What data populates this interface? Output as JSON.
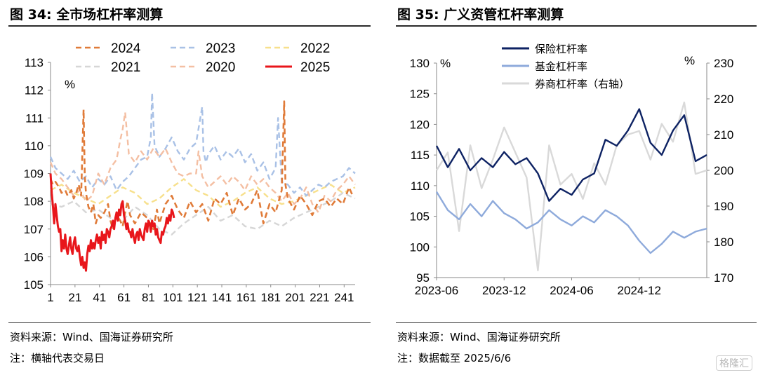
{
  "left": {
    "title": "图 34:  全市场杠杆率测算",
    "source": "资料来源：Wind、国海证券研究所",
    "note": "注：横轴代表交易日",
    "chart_data": {
      "type": "line",
      "ylabel": "%",
      "ylim": [
        105,
        113
      ],
      "yticks": [
        105,
        106,
        107,
        108,
        109,
        110,
        111,
        112,
        113
      ],
      "xlim": [
        1,
        250
      ],
      "xticks": [
        1,
        21,
        41,
        61,
        81,
        101,
        121,
        141,
        161,
        181,
        201,
        221,
        241
      ],
      "legend_position": "top",
      "series": [
        {
          "name": "2024",
          "color": "#E07B39",
          "dash": "8,5",
          "width": 2.6,
          "x": [
            1,
            3,
            5,
            8,
            10,
            13,
            15,
            18,
            20,
            22,
            24,
            26,
            28,
            29,
            30,
            32,
            34,
            36,
            38,
            40,
            42,
            45,
            48,
            50,
            52,
            55,
            58,
            60,
            62,
            64,
            66,
            70,
            75,
            80,
            85,
            88,
            90,
            95,
            100,
            105,
            110,
            115,
            120,
            125,
            130,
            135,
            140,
            145,
            150,
            155,
            160,
            165,
            170,
            175,
            180,
            185,
            190,
            192,
            193,
            195,
            200,
            205,
            210,
            215,
            220,
            225,
            230,
            235,
            240,
            245,
            248
          ],
          "y": [
            108.8,
            108.6,
            108.7,
            108.5,
            108.3,
            108.4,
            108.2,
            108.4,
            108.1,
            108.3,
            108.6,
            108.2,
            111.3,
            108.9,
            108.3,
            107.8,
            107.6,
            107.9,
            107.2,
            107.5,
            107.4,
            107.6,
            107.9,
            107.3,
            107.0,
            107.5,
            107.3,
            107.1,
            107.6,
            108.0,
            107.5,
            107.2,
            107.6,
            107.4,
            107.0,
            107.7,
            107.2,
            107.9,
            108.2,
            107.7,
            107.4,
            108.0,
            107.6,
            107.9,
            107.3,
            108.1,
            107.9,
            108.3,
            107.5,
            108.1,
            107.7,
            107.9,
            108.4,
            107.2,
            107.9,
            107.6,
            108.4,
            111.6,
            108.6,
            108.1,
            107.7,
            108.2,
            107.9,
            107.5,
            108.0,
            108.1,
            107.8,
            108.1,
            107.9,
            108.5,
            108.2
          ]
        },
        {
          "name": "2023",
          "color": "#A9C1E6",
          "dash": "8,5",
          "width": 2.4,
          "x": [
            1,
            5,
            10,
            15,
            20,
            25,
            30,
            35,
            40,
            45,
            50,
            55,
            60,
            65,
            70,
            75,
            80,
            83,
            84,
            86,
            90,
            95,
            100,
            105,
            110,
            115,
            120,
            125,
            126,
            128,
            130,
            135,
            140,
            145,
            150,
            155,
            160,
            165,
            170,
            175,
            180,
            185,
            187,
            190,
            195,
            200,
            205,
            210,
            215,
            220,
            225,
            230,
            235,
            240,
            245,
            250
          ],
          "y": [
            109.6,
            109.2,
            109.0,
            108.8,
            109.1,
            108.7,
            108.9,
            108.5,
            108.8,
            108.6,
            108.9,
            108.4,
            108.7,
            108.9,
            109.2,
            109.5,
            109.6,
            110.3,
            111.9,
            110.0,
            109.6,
            109.9,
            110.3,
            109.8,
            109.5,
            109.9,
            110.1,
            111.4,
            109.8,
            109.4,
            109.7,
            110.0,
            109.5,
            109.8,
            109.6,
            109.9,
            109.4,
            109.7,
            109.1,
            109.4,
            108.8,
            109.2,
            111.0,
            108.7,
            108.6,
            108.3,
            108.5,
            108.2,
            108.4,
            108.6,
            108.5,
            108.7,
            108.8,
            108.9,
            109.2,
            109.0
          ]
        },
        {
          "name": "2022",
          "color": "#F7E08C",
          "dash": "8,5",
          "width": 2.4,
          "x": [
            1,
            10,
            20,
            30,
            40,
            50,
            60,
            70,
            80,
            90,
            100,
            110,
            120,
            130,
            140,
            150,
            160,
            170,
            180,
            190,
            200,
            210,
            220,
            230,
            240,
            250
          ],
          "y": [
            108.4,
            108.6,
            108.3,
            108.1,
            107.9,
            108.2,
            108.5,
            108.3,
            107.9,
            108.1,
            108.5,
            108.8,
            108.4,
            108.2,
            107.8,
            108.0,
            108.3,
            108.5,
            108.1,
            107.9,
            108.0,
            108.2,
            108.4,
            108.6,
            108.3,
            108.5
          ]
        },
        {
          "name": "2021",
          "color": "#D6D6D6",
          "dash": "8,5",
          "width": 2.4,
          "x": [
            1,
            10,
            20,
            30,
            40,
            50,
            60,
            70,
            80,
            90,
            100,
            110,
            120,
            130,
            140,
            150,
            160,
            170,
            180,
            190,
            200,
            210,
            220,
            230,
            240,
            250
          ],
          "y": [
            107.9,
            107.8,
            108.0,
            107.6,
            107.7,
            107.4,
            107.3,
            107.8,
            107.5,
            107.0,
            106.8,
            107.2,
            107.5,
            107.8,
            107.3,
            107.5,
            107.1,
            107.0,
            107.3,
            107.1,
            107.4,
            107.6,
            107.8,
            108.0,
            108.3,
            108.1
          ]
        },
        {
          "name": "2020",
          "color": "#F4BFA3",
          "dash": "8,5",
          "width": 2.4,
          "x": [
            1,
            5,
            10,
            15,
            20,
            25,
            30,
            35,
            40,
            45,
            50,
            55,
            58,
            60,
            62,
            65,
            70,
            75,
            80,
            85,
            90,
            95,
            100,
            105,
            110,
            115,
            120,
            122,
            125,
            130,
            135,
            140,
            145,
            150,
            155,
            160,
            165,
            170,
            175,
            180,
            185,
            190,
            195,
            200,
            205,
            210,
            215,
            220,
            225,
            230,
            235,
            240,
            245,
            250
          ],
          "y": [
            109.4,
            109.0,
            108.8,
            108.5,
            108.2,
            108.4,
            108.0,
            108.2,
            109.0,
            108.6,
            109.2,
            109.5,
            110.2,
            110.6,
            111.2,
            109.7,
            109.4,
            109.8,
            109.5,
            109.9,
            109.6,
            109.9,
            109.4,
            109.0,
            108.9,
            109.0,
            109.0,
            109.8,
            108.9,
            108.5,
            108.7,
            108.9,
            108.6,
            108.9,
            108.7,
            108.4,
            108.9,
            108.6,
            108.8,
            108.5,
            108.3,
            108.0,
            108.3,
            107.9,
            108.1,
            108.5,
            107.9,
            107.6,
            108.2,
            108.0,
            108.4,
            108.6,
            108.9,
            108.6
          ]
        },
        {
          "name": "2025",
          "color": "#E8161B",
          "dash": "",
          "width": 3.0,
          "x": [
            1,
            2,
            3,
            4,
            5,
            6,
            7,
            8,
            9,
            10,
            11,
            12,
            13,
            14,
            15,
            16,
            17,
            18,
            19,
            20,
            21,
            22,
            23,
            24,
            25,
            26,
            27,
            28,
            29,
            30,
            31,
            32,
            33,
            34,
            35,
            36,
            37,
            38,
            39,
            40,
            41,
            42,
            43,
            44,
            45,
            46,
            47,
            48,
            49,
            50,
            51,
            52,
            53,
            54,
            55,
            56,
            57,
            58,
            59,
            60,
            61,
            62,
            63,
            64,
            65,
            66,
            67,
            68,
            69,
            70,
            71,
            72,
            73,
            74,
            75,
            76,
            77,
            78,
            79,
            80,
            81,
            82,
            83,
            84,
            85,
            86,
            87,
            88,
            89,
            90,
            91,
            92,
            93,
            94,
            95,
            96,
            97,
            98,
            99,
            100,
            101,
            102
          ],
          "y": [
            109.0,
            108.3,
            107.8,
            107.2,
            107.9,
            107.5,
            107.1,
            106.9,
            107.0,
            106.2,
            106.6,
            106.3,
            106.8,
            106.3,
            106.1,
            106.4,
            106.7,
            106.3,
            106.1,
            106.5,
            106.7,
            106.3,
            106.2,
            106.4,
            106.0,
            105.7,
            106.0,
            105.6,
            105.8,
            105.5,
            106.1,
            106.4,
            106.2,
            106.6,
            106.3,
            106.5,
            106.3,
            106.6,
            106.8,
            106.5,
            106.7,
            106.3,
            106.9,
            106.6,
            106.8,
            106.5,
            107.0,
            106.9,
            106.7,
            107.0,
            107.1,
            107.3,
            107.0,
            107.4,
            107.6,
            107.3,
            107.7,
            107.5,
            107.9,
            108.0,
            107.5,
            107.3,
            107.0,
            107.2,
            106.9,
            106.9,
            106.7,
            107.0,
            106.7,
            106.5,
            106.8,
            106.9,
            106.6,
            107.0,
            106.8,
            106.7,
            106.6,
            107.0,
            107.2,
            106.9,
            107.3,
            107.2,
            106.9,
            107.3,
            107.1,
            107.2,
            106.8,
            107.0,
            106.7,
            106.6,
            106.5,
            106.9,
            106.8,
            107.0,
            107.1,
            107.4,
            107.2,
            107.5,
            107.3,
            107.7,
            107.6,
            107.4
          ]
        }
      ]
    }
  },
  "right": {
    "title": "图 35:  广义资管杠杆率测算",
    "source": "资料来源：Wind、国海证券研究所",
    "note": "注：数据截至 2025/6/6",
    "chart_data": {
      "type": "line",
      "ylabel_left": "%",
      "ylabel_right": "%",
      "ylim_left": [
        95,
        130
      ],
      "yticks_left": [
        95,
        100,
        105,
        110,
        115,
        120,
        125,
        130
      ],
      "ylim_right": [
        170,
        230
      ],
      "yticks_right": [
        170,
        180,
        190,
        200,
        210,
        220,
        230
      ],
      "xlim": [
        "2023-06",
        "2025-06"
      ],
      "xticks": [
        "2023-06",
        "2023-12",
        "2024-06",
        "2024-12"
      ],
      "legend_position": "top-left",
      "series": [
        {
          "name": "保险杠杆率",
          "axis": "left",
          "color": "#0D2263",
          "width": 2.4,
          "x": [
            "2023-06",
            "2023-07",
            "2023-08",
            "2023-09",
            "2023-10",
            "2023-11",
            "2023-12",
            "2024-01",
            "2024-02",
            "2024-03",
            "2024-04",
            "2024-05",
            "2024-06",
            "2024-07",
            "2024-08",
            "2024-09",
            "2024-10",
            "2024-11",
            "2024-12",
            "2025-01",
            "2025-02",
            "2025-03",
            "2025-04",
            "2025-05",
            "2025-06"
          ],
          "y": [
            116.5,
            113.0,
            116.0,
            112.5,
            114.5,
            113.0,
            115.5,
            113.5,
            114.5,
            112.0,
            107.5,
            109.5,
            108.5,
            111.0,
            112.0,
            117.5,
            116.5,
            119.0,
            122.5,
            117.0,
            115.0,
            119.0,
            121.5,
            114.0,
            115.0
          ]
        },
        {
          "name": "基金杠杆率",
          "axis": "left",
          "color": "#8EAADB",
          "width": 2.4,
          "x": [
            "2023-06",
            "2023-07",
            "2023-08",
            "2023-09",
            "2023-10",
            "2023-11",
            "2023-12",
            "2024-01",
            "2024-02",
            "2024-03",
            "2024-04",
            "2024-05",
            "2024-06",
            "2024-07",
            "2024-08",
            "2024-09",
            "2024-10",
            "2024-11",
            "2024-12",
            "2025-01",
            "2025-02",
            "2025-03",
            "2025-04",
            "2025-05",
            "2025-06"
          ],
          "y": [
            109.0,
            106.0,
            104.5,
            107.0,
            105.0,
            107.5,
            105.5,
            104.5,
            103.0,
            104.0,
            106.0,
            104.5,
            103.5,
            105.0,
            104.0,
            106.0,
            105.0,
            103.5,
            101.0,
            99.0,
            100.5,
            102.5,
            101.5,
            102.5,
            103.0
          ]
        },
        {
          "name": "券商杠杆率（右轴）",
          "axis": "right",
          "color": "#D9D9D9",
          "width": 2.4,
          "x": [
            "2023-06",
            "2023-07",
            "2023-08",
            "2023-09",
            "2023-10",
            "2023-11",
            "2023-12",
            "2024-01",
            "2024-02",
            "2024-03",
            "2024-04",
            "2024-05",
            "2024-06",
            "2024-07",
            "2024-08",
            "2024-09",
            "2024-10",
            "2024-11",
            "2024-12",
            "2025-01",
            "2025-02",
            "2025-03",
            "2025-04",
            "2025-05",
            "2025-06"
          ],
          "y": [
            200,
            205,
            183,
            207,
            195,
            203,
            212,
            205,
            198,
            172,
            207,
            196,
            199,
            192,
            202,
            196,
            207,
            210,
            211,
            203,
            213,
            208,
            219,
            199,
            200
          ]
        }
      ]
    }
  },
  "watermark": "格隆汇"
}
